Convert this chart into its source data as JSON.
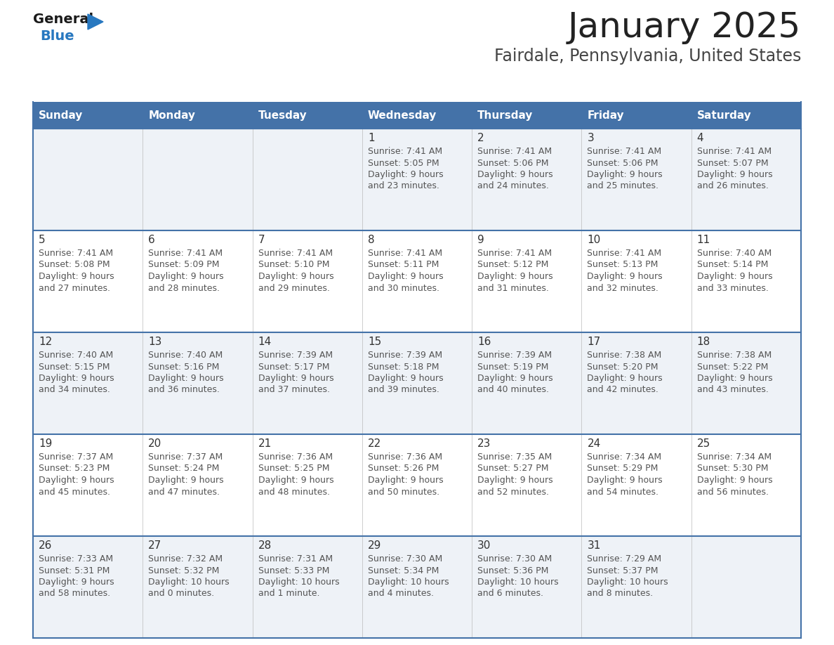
{
  "title": "January 2025",
  "subtitle": "Fairdale, Pennsylvania, United States",
  "days_of_week": [
    "Sunday",
    "Monday",
    "Tuesday",
    "Wednesday",
    "Thursday",
    "Friday",
    "Saturday"
  ],
  "header_bg": "#4472a8",
  "header_text": "#ffffff",
  "row_bg_light": "#eef2f7",
  "row_bg_white": "#ffffff",
  "cell_border_color": "#4472a8",
  "day_num_color": "#333333",
  "info_text_color": "#555555",
  "title_color": "#222222",
  "subtitle_color": "#444444",
  "logo_general_color": "#1a1a1a",
  "logo_blue_color": "#2878c0",
  "calendar_data": [
    [
      {
        "day": "",
        "sunrise": "",
        "sunset": "",
        "daylight": ""
      },
      {
        "day": "",
        "sunrise": "",
        "sunset": "",
        "daylight": ""
      },
      {
        "day": "",
        "sunrise": "",
        "sunset": "",
        "daylight": ""
      },
      {
        "day": "1",
        "sunrise": "Sunrise: 7:41 AM",
        "sunset": "Sunset: 5:05 PM",
        "daylight": "Daylight: 9 hours\nand 23 minutes."
      },
      {
        "day": "2",
        "sunrise": "Sunrise: 7:41 AM",
        "sunset": "Sunset: 5:06 PM",
        "daylight": "Daylight: 9 hours\nand 24 minutes."
      },
      {
        "day": "3",
        "sunrise": "Sunrise: 7:41 AM",
        "sunset": "Sunset: 5:06 PM",
        "daylight": "Daylight: 9 hours\nand 25 minutes."
      },
      {
        "day": "4",
        "sunrise": "Sunrise: 7:41 AM",
        "sunset": "Sunset: 5:07 PM",
        "daylight": "Daylight: 9 hours\nand 26 minutes."
      }
    ],
    [
      {
        "day": "5",
        "sunrise": "Sunrise: 7:41 AM",
        "sunset": "Sunset: 5:08 PM",
        "daylight": "Daylight: 9 hours\nand 27 minutes."
      },
      {
        "day": "6",
        "sunrise": "Sunrise: 7:41 AM",
        "sunset": "Sunset: 5:09 PM",
        "daylight": "Daylight: 9 hours\nand 28 minutes."
      },
      {
        "day": "7",
        "sunrise": "Sunrise: 7:41 AM",
        "sunset": "Sunset: 5:10 PM",
        "daylight": "Daylight: 9 hours\nand 29 minutes."
      },
      {
        "day": "8",
        "sunrise": "Sunrise: 7:41 AM",
        "sunset": "Sunset: 5:11 PM",
        "daylight": "Daylight: 9 hours\nand 30 minutes."
      },
      {
        "day": "9",
        "sunrise": "Sunrise: 7:41 AM",
        "sunset": "Sunset: 5:12 PM",
        "daylight": "Daylight: 9 hours\nand 31 minutes."
      },
      {
        "day": "10",
        "sunrise": "Sunrise: 7:41 AM",
        "sunset": "Sunset: 5:13 PM",
        "daylight": "Daylight: 9 hours\nand 32 minutes."
      },
      {
        "day": "11",
        "sunrise": "Sunrise: 7:40 AM",
        "sunset": "Sunset: 5:14 PM",
        "daylight": "Daylight: 9 hours\nand 33 minutes."
      }
    ],
    [
      {
        "day": "12",
        "sunrise": "Sunrise: 7:40 AM",
        "sunset": "Sunset: 5:15 PM",
        "daylight": "Daylight: 9 hours\nand 34 minutes."
      },
      {
        "day": "13",
        "sunrise": "Sunrise: 7:40 AM",
        "sunset": "Sunset: 5:16 PM",
        "daylight": "Daylight: 9 hours\nand 36 minutes."
      },
      {
        "day": "14",
        "sunrise": "Sunrise: 7:39 AM",
        "sunset": "Sunset: 5:17 PM",
        "daylight": "Daylight: 9 hours\nand 37 minutes."
      },
      {
        "day": "15",
        "sunrise": "Sunrise: 7:39 AM",
        "sunset": "Sunset: 5:18 PM",
        "daylight": "Daylight: 9 hours\nand 39 minutes."
      },
      {
        "day": "16",
        "sunrise": "Sunrise: 7:39 AM",
        "sunset": "Sunset: 5:19 PM",
        "daylight": "Daylight: 9 hours\nand 40 minutes."
      },
      {
        "day": "17",
        "sunrise": "Sunrise: 7:38 AM",
        "sunset": "Sunset: 5:20 PM",
        "daylight": "Daylight: 9 hours\nand 42 minutes."
      },
      {
        "day": "18",
        "sunrise": "Sunrise: 7:38 AM",
        "sunset": "Sunset: 5:22 PM",
        "daylight": "Daylight: 9 hours\nand 43 minutes."
      }
    ],
    [
      {
        "day": "19",
        "sunrise": "Sunrise: 7:37 AM",
        "sunset": "Sunset: 5:23 PM",
        "daylight": "Daylight: 9 hours\nand 45 minutes."
      },
      {
        "day": "20",
        "sunrise": "Sunrise: 7:37 AM",
        "sunset": "Sunset: 5:24 PM",
        "daylight": "Daylight: 9 hours\nand 47 minutes."
      },
      {
        "day": "21",
        "sunrise": "Sunrise: 7:36 AM",
        "sunset": "Sunset: 5:25 PM",
        "daylight": "Daylight: 9 hours\nand 48 minutes."
      },
      {
        "day": "22",
        "sunrise": "Sunrise: 7:36 AM",
        "sunset": "Sunset: 5:26 PM",
        "daylight": "Daylight: 9 hours\nand 50 minutes."
      },
      {
        "day": "23",
        "sunrise": "Sunrise: 7:35 AM",
        "sunset": "Sunset: 5:27 PM",
        "daylight": "Daylight: 9 hours\nand 52 minutes."
      },
      {
        "day": "24",
        "sunrise": "Sunrise: 7:34 AM",
        "sunset": "Sunset: 5:29 PM",
        "daylight": "Daylight: 9 hours\nand 54 minutes."
      },
      {
        "day": "25",
        "sunrise": "Sunrise: 7:34 AM",
        "sunset": "Sunset: 5:30 PM",
        "daylight": "Daylight: 9 hours\nand 56 minutes."
      }
    ],
    [
      {
        "day": "26",
        "sunrise": "Sunrise: 7:33 AM",
        "sunset": "Sunset: 5:31 PM",
        "daylight": "Daylight: 9 hours\nand 58 minutes."
      },
      {
        "day": "27",
        "sunrise": "Sunrise: 7:32 AM",
        "sunset": "Sunset: 5:32 PM",
        "daylight": "Daylight: 10 hours\nand 0 minutes."
      },
      {
        "day": "28",
        "sunrise": "Sunrise: 7:31 AM",
        "sunset": "Sunset: 5:33 PM",
        "daylight": "Daylight: 10 hours\nand 1 minute."
      },
      {
        "day": "29",
        "sunrise": "Sunrise: 7:30 AM",
        "sunset": "Sunset: 5:34 PM",
        "daylight": "Daylight: 10 hours\nand 4 minutes."
      },
      {
        "day": "30",
        "sunrise": "Sunrise: 7:30 AM",
        "sunset": "Sunset: 5:36 PM",
        "daylight": "Daylight: 10 hours\nand 6 minutes."
      },
      {
        "day": "31",
        "sunrise": "Sunrise: 7:29 AM",
        "sunset": "Sunset: 5:37 PM",
        "daylight": "Daylight: 10 hours\nand 8 minutes."
      },
      {
        "day": "",
        "sunrise": "",
        "sunset": "",
        "daylight": ""
      }
    ]
  ]
}
